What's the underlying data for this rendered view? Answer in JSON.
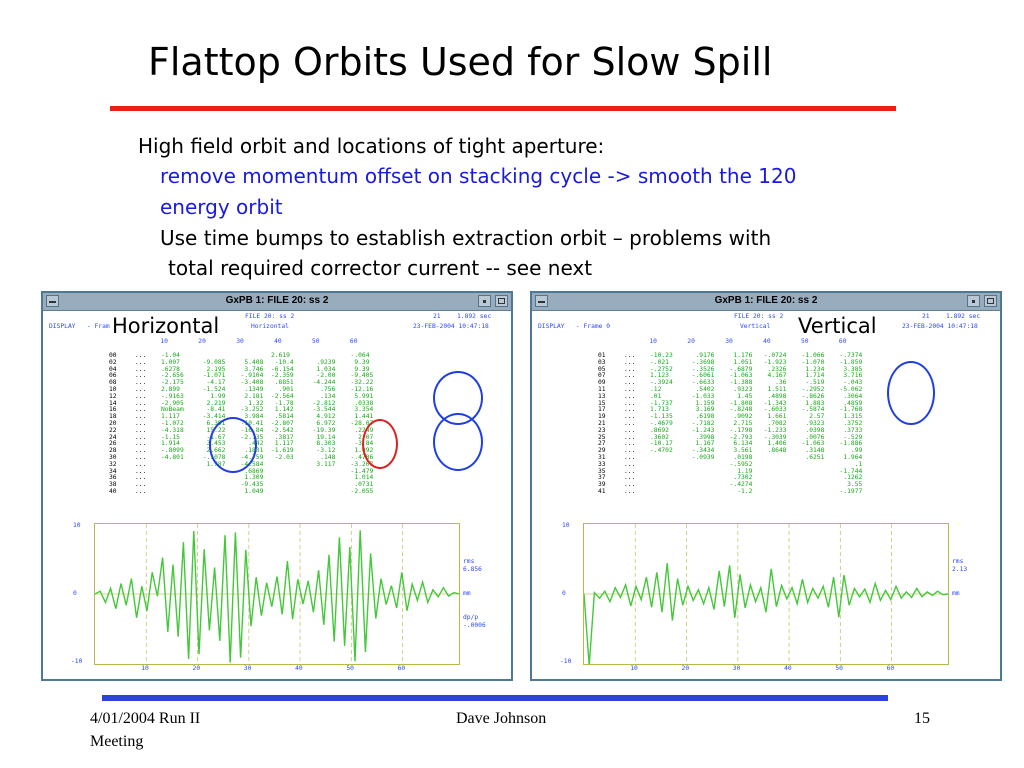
{
  "slide": {
    "title": "Flattop Orbits Used for Slow Spill",
    "bullets": [
      {
        "text": "High field orbit and locations of tight aperture:",
        "color": "#000000"
      },
      {
        "text": "remove momentum offset on stacking cycle -> smooth the 120",
        "color": "#1a1adf"
      },
      {
        "text": "energy orbit",
        "color": "#1a1adf"
      },
      {
        "text": "Use time bumps to establish extraction orbit – problems with",
        "color": "#000000"
      },
      {
        "text": "total required corrector current  -- see next",
        "color": "#000000"
      }
    ],
    "footer": {
      "left_line1": "4/01/2004   Run II",
      "left_line2": "Meeting",
      "center": "Dave Johnson",
      "page": "15"
    },
    "accent_colors": {
      "title_rule": "#e8201b",
      "footer_rule": "#2b43d8",
      "trace": "#44c83a",
      "axes": "#b8b84a"
    }
  },
  "panels": [
    {
      "overlay_label": "Horizontal",
      "window_title": "GxPB 1: FILE 20: ss 2",
      "display_label": "DISPLAY   - Frame",
      "file_label": "FILE 20: ss 2",
      "mode": "Horizontal",
      "cycle": "21",
      "time": "1.892 sec",
      "date": "23-FEB-2004 10:47:18",
      "col_header": "   10        20        30        40        50        60",
      "labels": [
        "00",
        "02",
        "04",
        "06",
        "08",
        "10",
        "12",
        "14",
        "16",
        "18",
        "20",
        "22",
        "24",
        "26",
        "28",
        "30",
        "32",
        "34",
        "36",
        "38",
        "40"
      ],
      "dots": "...",
      "rows": [
        "-1.04                        2.619                -.064",
        "1.007      -9.085     5.408   -10.4      .9239     9.39",
        ".6278       2.195     3.746  -6.154      1.034     9.39",
        "-2.656     -1.071    -.9104  -2.359      -2.00    -9.405",
        "-2.175      -4.17    -3.408   .8851     -4.244    -32.22",
        "2.899      -1.524     .1349    .901       .756    -12.16",
        "-.9163       1.99     2.181  -2.564       .134     5.991",
        "-2.905      2.219      1.32   -1.78     -2.812     .0338",
        "NoBeam      -8.41    -3.252   1.142     -3.544     3.354",
        "1.117      -3.414     3.984   .5814      4.912     1.441",
        "-1.072      6.391    -10.41  -2.807      6.972    -28.07",
        "-4.318      15.22    -16.84  -2.542     -19.39     .2249",
        "-1.15       -1.67    -2.135   .3817      19.14      2.07",
        "1.914       3.453      .442   1.117      8.303     -3.84",
        "-.8099      2.662     .1831  -1.619      -3.12     1.092",
        "-4.801     -.1078    -4.759   -2.03       .148    -.4786",
        "            1.787    -4.584              3.117    -3.207",
        "                      .6869                       -1.479",
        "                      1.309                        1.014",
        "                     -9.435                        .0731",
        "                      1.049                       -2.055"
      ],
      "chart_data": {
        "type": "line",
        "y_ticks": [
          "10",
          "0",
          "-10"
        ],
        "x_ticks": [
          "10",
          "20",
          "30",
          "40",
          "50",
          "60"
        ],
        "ylim": [
          -10,
          10
        ],
        "xlim": [
          0,
          71
        ],
        "side_labels": [
          "rms",
          "6.856",
          "mm",
          "dp/p",
          "-.0006"
        ],
        "grid": "vertical dashed",
        "series": [
          {
            "values": [
              0,
              0.4,
              -1.2,
              0.8,
              -2.1,
              1.5,
              -1.6,
              2.2,
              -3.4,
              1.1,
              -2.4,
              3.1,
              -0.3,
              5.2,
              -5.4,
              4.2,
              -6.1,
              7.4,
              -9.3,
              9.0,
              -8.6,
              6.4,
              -5.2,
              3.8,
              -6.7,
              8.4,
              -9.8,
              8.8,
              -9.1,
              6.3,
              -4.6,
              2.4,
              -3.1,
              1.6,
              -1.8,
              2.5,
              -2.9,
              4.7,
              -3.6,
              2.1,
              -1.4,
              1.9,
              -2.6,
              3.4,
              -4.4,
              5.6,
              -6.8,
              8.1,
              -7.4,
              6.7,
              -9.6,
              9.1,
              -8.3,
              5.8,
              -3.5,
              2.2,
              -1.5,
              1.2,
              -2.0,
              3.1,
              -2.4,
              1.4,
              -0.9,
              1.7,
              -1.2,
              0.6,
              -0.4,
              0.9,
              -0.3,
              0.2,
              0
            ]
          }
        ]
      }
    },
    {
      "overlay_label": "Vertical",
      "window_title": "GxPB 1: FILE 20: ss 2",
      "display_label": "DISPLAY   - Frame 0",
      "file_label": "FILE 20: ss 2",
      "mode": "Vertical",
      "cycle": "21",
      "time": "1.892 sec",
      "date": "23-FEB-2004 10:47:18",
      "col_header": "   10        20        30        40        50        60",
      "labels": [
        "01",
        "03",
        "05",
        "07",
        "09",
        "11",
        "13",
        "15",
        "17",
        "19",
        "21",
        "23",
        "25",
        "27",
        "29",
        "31",
        "33",
        "35",
        "37",
        "39",
        "41"
      ],
      "dots": "...",
      "rows": [
        "-10.23      .9176     1.176   -.0724    -1.066    -.7374",
        "-.021      -.3698     1.051   -1.923    -1.070    -1.859",
        "-.2752     -.3526    -.6879    .2326     1.234     3.385",
        "1.123      -.6061    -1.063    4.167     1.714     3.716",
        "-.3924     -.6633    -1.388      .36     -.519     -.043",
        ".12         .5402     .9323    1.511    -.2952    -5.062",
        ".01        -1.033      1.45    .4898    -.8626     .3064",
        "-1.737      1.159    -1.808   -1.343     1.883     .4859",
        "1.713       3.169    -.8248   -.6033    -.5874    -1.768",
        "-1.135      .6198     .9092    1.661      2.57     1.315",
        "-.4679     -.7182     2.715    .7082     .9323     .3752",
        ".8692      -1.243    -.1798   -1.233     .0398     .3733",
        ".3602       .3998    -2.793   -.3039     .0076     -.529",
        "-10.17      1.167     6.134    1.406    -1.063    -1.886",
        "-.4702     -.3434     3.561    .8648     .3148       .99",
        "           -.0939     .0198              .6251     1.964",
        "                     -.5952                           .1",
        "                       1.19                       -1.744",
        "                      .7302                        .1262",
        "                     -.4274                         3.55",
        "                       -1.2                       -.1977"
      ],
      "chart_data": {
        "type": "line",
        "y_ticks": [
          "10",
          "0",
          "-10"
        ],
        "x_ticks": [
          "10",
          "20",
          "30",
          "40",
          "50",
          "60"
        ],
        "ylim": [
          -10,
          10
        ],
        "xlim": [
          0,
          71
        ],
        "side_labels": [
          "rms",
          "2.13",
          "mm"
        ],
        "grid": "vertical dashed",
        "series": [
          {
            "values": [
              0,
              -10.2,
              0.2,
              -0.6,
              0.4,
              -1.1,
              0.9,
              -0.5,
              1.3,
              -1.7,
              1.1,
              -0.8,
              2.4,
              -1.9,
              3.1,
              -2.6,
              4.4,
              -3.8,
              2.2,
              -1.6,
              1.1,
              -0.9,
              0.6,
              -1.4,
              0.9,
              -2.2,
              3.3,
              -1.8,
              4.1,
              -3.4,
              2.8,
              -2.0,
              1.3,
              -1.1,
              0.9,
              -2.6,
              3.6,
              -1.8,
              1.2,
              -0.7,
              0.9,
              -1.4,
              2.1,
              -1.2,
              0.8,
              -0.6,
              1.1,
              -1.9,
              2.4,
              -3.3,
              2.7,
              -1.6,
              0.8,
              -0.4,
              0.7,
              -1.2,
              1.5,
              -0.9,
              0.5,
              -0.8,
              1.1,
              -0.6,
              0.3,
              -0.5,
              0.8,
              -0.4,
              0.3,
              -0.2,
              0.4,
              -0.1,
              0
            ]
          }
        ]
      }
    }
  ]
}
